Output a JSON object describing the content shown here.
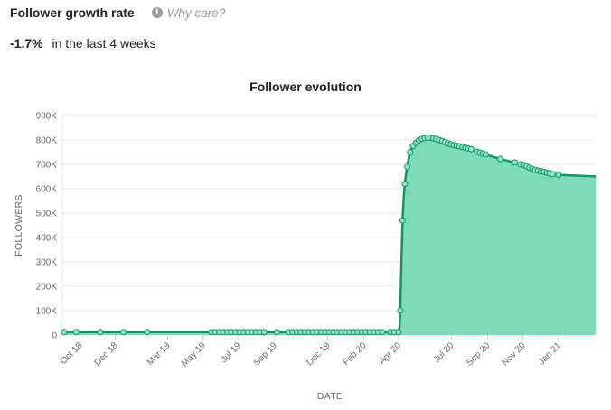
{
  "header": {
    "title": "Follower growth rate",
    "help_text": "Why care?",
    "info_icon": "info-icon"
  },
  "stat": {
    "delta": "-1.7%",
    "period": "in the last 4 weeks"
  },
  "chart_data": {
    "type": "area",
    "title": "Follower evolution",
    "xlabel": "DATE",
    "ylabel": "FOLLOWERS",
    "ylim": [
      0,
      900000
    ],
    "yticks": [
      {
        "value": 0,
        "label": "0"
      },
      {
        "value": 100000,
        "label": "100K"
      },
      {
        "value": 200000,
        "label": "200K"
      },
      {
        "value": 300000,
        "label": "300K"
      },
      {
        "value": 400000,
        "label": "400K"
      },
      {
        "value": 500000,
        "label": "500K"
      },
      {
        "value": 600000,
        "label": "600K"
      },
      {
        "value": 700000,
        "label": "700K"
      },
      {
        "value": 800000,
        "label": "800K"
      },
      {
        "value": 900000,
        "label": "900K"
      }
    ],
    "xlim": [
      "2018-09-01",
      "2021-03-06"
    ],
    "xticks": [
      {
        "date": "2018-10-01",
        "label": "Oct 18"
      },
      {
        "date": "2018-12-01",
        "label": "Dec 18"
      },
      {
        "date": "2019-03-01",
        "label": "Mar 19"
      },
      {
        "date": "2019-05-01",
        "label": "May 19"
      },
      {
        "date": "2019-07-01",
        "label": "Jul 19"
      },
      {
        "date": "2019-09-01",
        "label": "Sep 19"
      },
      {
        "date": "2019-12-01",
        "label": "Dec 19"
      },
      {
        "date": "2020-02-01",
        "label": "Feb 20"
      },
      {
        "date": "2020-04-01",
        "label": "Apr 20"
      },
      {
        "date": "2020-07-01",
        "label": "Jul 20"
      },
      {
        "date": "2020-09-01",
        "label": "Sep 20"
      },
      {
        "date": "2020-11-01",
        "label": "Nov 20"
      },
      {
        "date": "2021-01-01",
        "label": "Jan 21"
      }
    ],
    "grid": true,
    "colors": {
      "line": "#139467",
      "fill": "#7ddbb9",
      "marker_fill": "#93e3c5"
    },
    "series": [
      {
        "name": "",
        "points": [
          [
            "2018-09-04",
            12000
          ],
          [
            "2018-09-25",
            12000
          ],
          [
            "2018-11-05",
            12000
          ],
          [
            "2018-12-15",
            12000
          ],
          [
            "2019-01-25",
            12000
          ],
          [
            "2019-05-15",
            12000
          ],
          [
            "2019-05-22",
            12000
          ],
          [
            "2019-05-29",
            12000
          ],
          [
            "2019-06-05",
            12000
          ],
          [
            "2019-06-12",
            12000
          ],
          [
            "2019-06-19",
            12000
          ],
          [
            "2019-06-26",
            12000
          ],
          [
            "2019-07-03",
            12000
          ],
          [
            "2019-07-10",
            12000
          ],
          [
            "2019-07-17",
            12000
          ],
          [
            "2019-07-24",
            12000
          ],
          [
            "2019-07-31",
            12000
          ],
          [
            "2019-08-07",
            12000
          ],
          [
            "2019-08-14",
            12000
          ],
          [
            "2019-09-05",
            12000
          ],
          [
            "2019-09-25",
            12000
          ],
          [
            "2019-10-02",
            12000
          ],
          [
            "2019-10-09",
            12000
          ],
          [
            "2019-10-16",
            12000
          ],
          [
            "2019-10-23",
            12000
          ],
          [
            "2019-10-30",
            12000
          ],
          [
            "2019-11-06",
            12000
          ],
          [
            "2019-11-13",
            12000
          ],
          [
            "2019-11-20",
            12000
          ],
          [
            "2019-11-27",
            12000
          ],
          [
            "2019-12-04",
            12000
          ],
          [
            "2019-12-11",
            12000
          ],
          [
            "2019-12-18",
            12000
          ],
          [
            "2019-12-25",
            12000
          ],
          [
            "2020-01-01",
            12000
          ],
          [
            "2020-01-08",
            12000
          ],
          [
            "2020-01-15",
            12000
          ],
          [
            "2020-01-22",
            12000
          ],
          [
            "2020-01-29",
            12000
          ],
          [
            "2020-02-05",
            12000
          ],
          [
            "2020-02-12",
            12000
          ],
          [
            "2020-02-19",
            12000
          ],
          [
            "2020-02-26",
            12000
          ],
          [
            "2020-03-04",
            12000
          ],
          [
            "2020-03-18",
            12000
          ],
          [
            "2020-03-25",
            12000
          ],
          [
            "2020-04-01",
            12000
          ],
          [
            "2020-04-04",
            100000
          ],
          [
            "2020-04-08",
            470000
          ],
          [
            "2020-04-12",
            620000
          ],
          [
            "2020-04-16",
            690000
          ],
          [
            "2020-04-21",
            750000
          ],
          [
            "2020-04-26",
            775000
          ],
          [
            "2020-05-01",
            788000
          ],
          [
            "2020-05-06",
            798000
          ],
          [
            "2020-05-11",
            805000
          ],
          [
            "2020-05-16",
            808000
          ],
          [
            "2020-05-21",
            810000
          ],
          [
            "2020-05-26",
            809000
          ],
          [
            "2020-05-31",
            807000
          ],
          [
            "2020-06-05",
            804000
          ],
          [
            "2020-06-10",
            800000
          ],
          [
            "2020-06-15",
            796000
          ],
          [
            "2020-06-20",
            791000
          ],
          [
            "2020-06-25",
            786000
          ],
          [
            "2020-06-30",
            782000
          ],
          [
            "2020-07-05",
            779000
          ],
          [
            "2020-07-10",
            776000
          ],
          [
            "2020-07-15",
            774000
          ],
          [
            "2020-07-20",
            771000
          ],
          [
            "2020-07-25",
            768000
          ],
          [
            "2020-07-30",
            765000
          ],
          [
            "2020-08-04",
            762000
          ],
          [
            "2020-08-14",
            752000
          ],
          [
            "2020-08-19",
            748000
          ],
          [
            "2020-08-24",
            744000
          ],
          [
            "2020-08-29",
            741000
          ],
          [
            "2020-09-23",
            722000
          ],
          [
            "2020-10-18",
            708000
          ],
          [
            "2020-10-28",
            700000
          ],
          [
            "2020-11-02",
            697000
          ],
          [
            "2020-11-07",
            692000
          ],
          [
            "2020-11-12",
            686000
          ],
          [
            "2020-11-17",
            681000
          ],
          [
            "2020-11-22",
            677000
          ],
          [
            "2020-11-27",
            674000
          ],
          [
            "2020-12-02",
            672000
          ],
          [
            "2020-12-07",
            669000
          ],
          [
            "2020-12-12",
            666000
          ],
          [
            "2020-12-17",
            663000
          ],
          [
            "2020-12-22",
            660000
          ],
          [
            "2021-01-01",
            657000
          ]
        ]
      }
    ]
  }
}
